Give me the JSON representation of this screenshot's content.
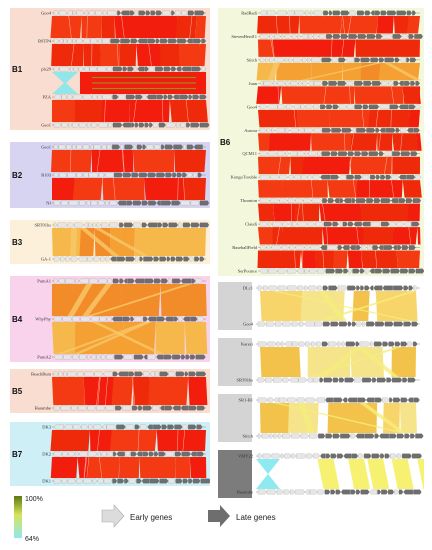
{
  "colors": {
    "B1": "#f8ddd0",
    "B2": "#d6d4f0",
    "B3": "#fcf0da",
    "B4": "#f9d3ec",
    "B5": "#f8ddd0",
    "B6": "#f3f8dc",
    "B7": "#cdeff5",
    "singleton": "#d4d4d4",
    "singleton_dark": "#7c7c7c",
    "early_gene": "#dcdcdc",
    "late_gene": "#6e6e6e"
  },
  "panels": [
    {
      "id": "B1",
      "label": "B1",
      "genomes": [
        "Goo4",
        "BSTP4",
        "pls29",
        "PZA",
        "Geo1"
      ],
      "identity": [
        "high",
        "high",
        "cross",
        "high"
      ]
    },
    {
      "id": "B2",
      "label": "B2",
      "genomes": [
        "Geo1",
        "B103",
        "Nf"
      ],
      "identity": [
        "high",
        "high"
      ]
    },
    {
      "id": "B3",
      "label": "B3",
      "genomes": [
        "SRT01hs",
        "GA-1"
      ],
      "identity": [
        "medium"
      ]
    },
    {
      "id": "B4",
      "label": "B4",
      "genomes": [
        "PumA1",
        "WhyPhy",
        "PumA2"
      ],
      "identity": [
        "medium",
        "medium"
      ]
    },
    {
      "id": "B5",
      "label": "B5",
      "genomes": [
        "BeachBum",
        "Harambe"
      ],
      "identity": [
        "high"
      ]
    },
    {
      "id": "B7",
      "label": "B7",
      "genomes": [
        "DK3",
        "DK2",
        "DK1"
      ],
      "identity": [
        "high",
        "high"
      ]
    },
    {
      "id": "B6",
      "label": "B6",
      "genomes": [
        "RadRadi",
        "StevenHerd11",
        "Stitch",
        "Juan",
        "Goo4",
        "Aurora",
        "QCM11",
        "KongoTrouble",
        "Thornton",
        "Claudi",
        "BaseballField",
        "SerPounce"
      ],
      "identity": [
        "high",
        "high",
        "medium",
        "high",
        "high",
        "high",
        "high",
        "high",
        "high",
        "high",
        "high"
      ]
    },
    {
      "id": "S1",
      "label": "",
      "genomes": [
        "DLc1",
        "Goo4"
      ],
      "identity": [
        "low"
      ]
    },
    {
      "id": "S2",
      "label": "",
      "genomes": [
        "Karezi",
        "SRT01hs"
      ],
      "identity": [
        "low"
      ]
    },
    {
      "id": "S3",
      "label": "",
      "genomes": [
        "SR1-B1",
        "Stitch"
      ],
      "identity": [
        "low"
      ]
    },
    {
      "id": "S4",
      "label": "",
      "genomes": [
        "VMY22",
        "Harambe"
      ],
      "identity": [
        "low"
      ]
    }
  ],
  "legend": {
    "max_label": "100%",
    "min_label": "64%",
    "early_label": "Early genes",
    "late_label": "Late genes"
  }
}
